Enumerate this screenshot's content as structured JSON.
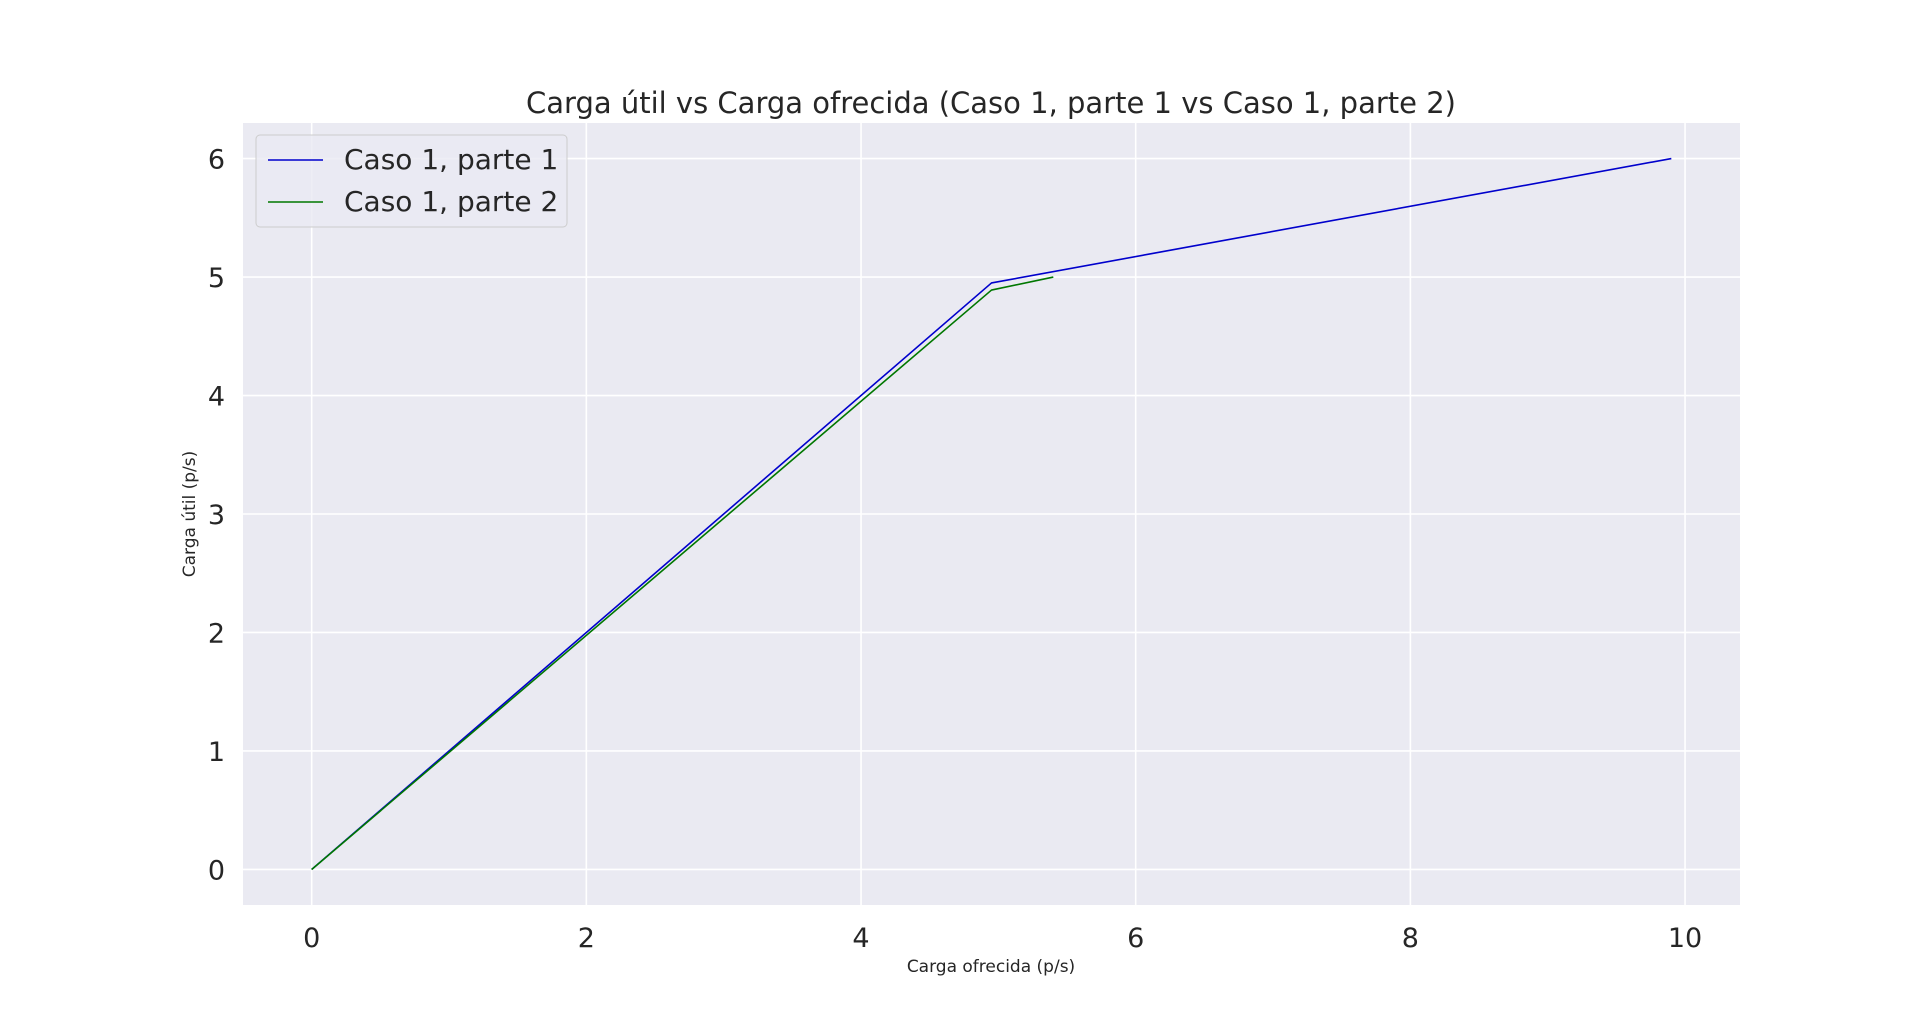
{
  "chart_data": {
    "type": "line",
    "title": "Carga útil vs Carga ofrecida (Caso 1, parte 1 vs Caso 1, parte 2)",
    "xlabel": "Carga ofrecida (p/s)",
    "ylabel": "Carga útil (p/s)",
    "xlim": [
      -0.5,
      10.4
    ],
    "ylim": [
      -0.3,
      6.3
    ],
    "xticks": [
      0,
      2,
      4,
      6,
      8,
      10
    ],
    "yticks": [
      0,
      1,
      2,
      3,
      4,
      5,
      6
    ],
    "grid": true,
    "legend_position": "top-left",
    "background_color": "#eaeaf2",
    "grid_color": "#ffffff",
    "series": [
      {
        "name": "Caso 1, parte 1",
        "color": "#0000cc",
        "x": [
          0,
          4.95,
          9.9
        ],
        "y": [
          0,
          4.95,
          6.0
        ]
      },
      {
        "name": "Caso 1, parte 2",
        "color": "#007700",
        "x": [
          0,
          4.95,
          5.4
        ],
        "y": [
          0,
          4.89,
          5.0
        ]
      }
    ]
  }
}
